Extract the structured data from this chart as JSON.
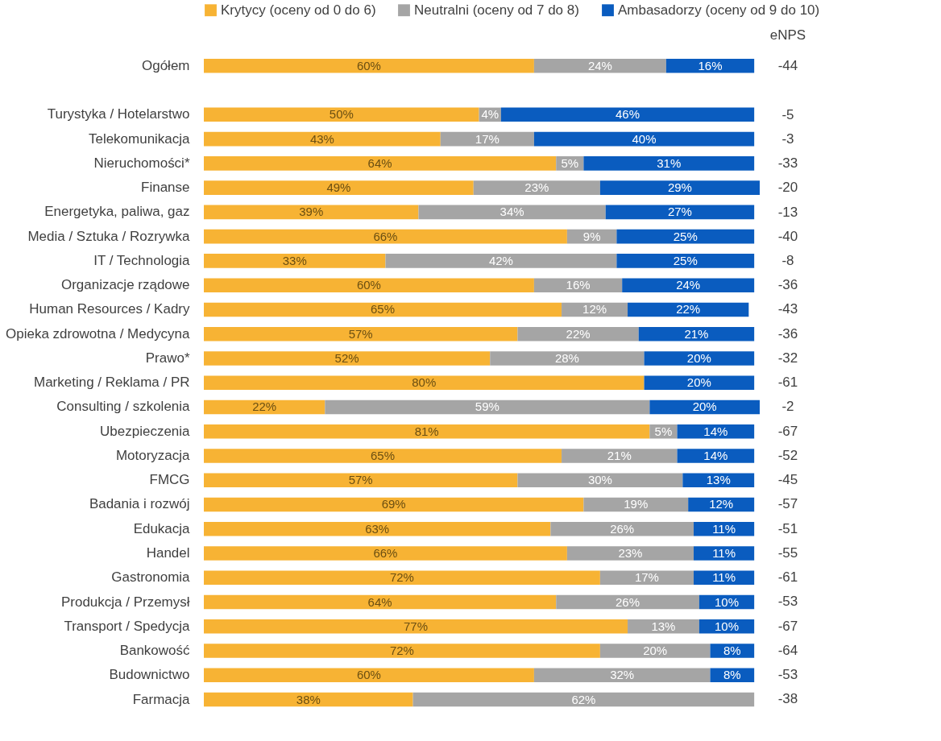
{
  "chart_data": {
    "type": "bar",
    "orientation": "horizontal",
    "stacked": true,
    "legend": "top",
    "tick_labels": "y",
    "y2label": "eNPS",
    "categories": [
      "Ogółem",
      null,
      "Turystyka / Hotelarstwo",
      "Telekomunikacja",
      "Nieruchomości*",
      "Finanse",
      "Energetyka, paliwa, gaz",
      "Media / Sztuka / Rozrywka",
      "IT / Technologia",
      "Organizacje rządowe",
      "Human Resources / Kadry",
      "Opieka zdrowotna / Medycyna",
      "Prawo*",
      "Marketing / Reklama / PR",
      "Consulting / szkolenia",
      "Ubezpieczenia",
      "Motoryzacja",
      "FMCG",
      "Badania i rozwój",
      "Edukacja",
      "Handel",
      "Gastronomia",
      "Produkcja / Przemysł",
      "Transport / Spedycja",
      "Bankowość",
      "Budownictwo",
      "Farmacja"
    ],
    "series": [
      {
        "name": "Krytycy (oceny od 0 do 6)",
        "color": "#f7b334",
        "values": [
          60,
          null,
          50,
          43,
          64,
          49,
          39,
          66,
          33,
          60,
          65,
          57,
          52,
          80,
          22,
          81,
          65,
          57,
          69,
          63,
          66,
          72,
          64,
          77,
          72,
          60,
          38
        ],
        "value_labels": [
          "60%",
          null,
          "50%",
          "43%",
          "64%",
          "49%",
          "39%",
          "66%",
          "33%",
          "60%",
          "65%",
          "57%",
          "52%",
          "80%",
          "22%",
          "81%",
          "65%",
          "57%",
          "69%",
          "63%",
          "66%",
          "72%",
          "64%",
          "77%",
          "72%",
          "60%",
          "38%"
        ]
      },
      {
        "name": "Neutralni (oceny od 7 do 8)",
        "color": "#a5a5a5",
        "values": [
          24,
          null,
          4,
          17,
          5,
          23,
          34,
          9,
          42,
          16,
          12,
          22,
          28,
          0,
          59,
          5,
          21,
          30,
          19,
          26,
          23,
          17,
          26,
          13,
          20,
          32,
          62
        ],
        "value_labels": [
          "24%",
          null,
          "4%",
          "17%",
          "5%",
          "23%",
          "34%",
          "9%",
          "42%",
          "16%",
          "12%",
          "22%",
          "28%",
          null,
          "59%",
          "5%",
          "21%",
          "30%",
          "19%",
          "26%",
          "23%",
          "17%",
          "26%",
          "13%",
          "20%",
          "32%",
          "62%"
        ]
      },
      {
        "name": "Ambasadorzy (oceny od 9 do 10)",
        "color": "#0a5cbf",
        "values": [
          16,
          null,
          46,
          40,
          31,
          29,
          27,
          25,
          25,
          24,
          22,
          21,
          20,
          20,
          20,
          14,
          14,
          13,
          12,
          11,
          11,
          11,
          10,
          10,
          8,
          8,
          0
        ],
        "value_labels": [
          "16%",
          null,
          "46%",
          "40%",
          "31%",
          "29%",
          "27%",
          "25%",
          "25%",
          "24%",
          "22%",
          "21%",
          "20%",
          "20%",
          "20%",
          "14%",
          "14%",
          "13%",
          "12%",
          "11%",
          "11%",
          "11%",
          "10%",
          "10%",
          "8%",
          "8%",
          null
        ]
      }
    ],
    "annotations": [
      "-44",
      "-5",
      "-3",
      "-33",
      "-20",
      "-13",
      "-40",
      "-8",
      "-36",
      "-43",
      "-36",
      "-32",
      "-61",
      "-2",
      "-67",
      "-52",
      "-45",
      "-57",
      "-51",
      "-55",
      "-61",
      "-53",
      "-67",
      "-64",
      "-53",
      "-38"
    ]
  }
}
